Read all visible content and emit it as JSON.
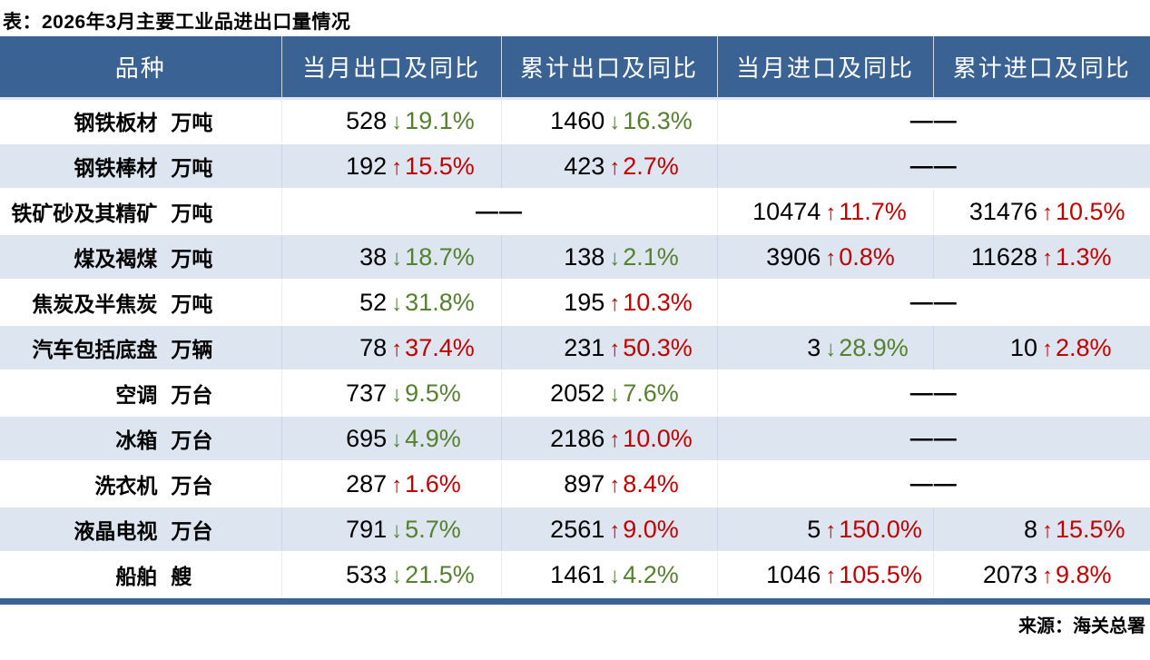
{
  "na_dash": "——",
  "arrows": {
    "up": "↑",
    "down": "↓"
  },
  "colors": {
    "header_bg": "#3A6292",
    "header_text": "#FFFFFF",
    "zebra_row": "#DCE5F0",
    "increase_red": "#C00000",
    "decrease_green": "#56802F",
    "accent_bar": "#3A6292",
    "text": "#000000"
  },
  "chart_data": {
    "type": "table",
    "title": "表：2026年3月主要工业品进出口量情况",
    "source": "来源：海关总署",
    "columns": [
      "品种",
      "当月出口及同比",
      "累计出口及同比",
      "当月进口及同比",
      "累计进口及同比"
    ],
    "yoy_note": "yoy_pct is year-over-year change in percent; negative = decline (green down arrow), positive = growth (red up arrow); null cells shown as ——",
    "rows": [
      {
        "name": "钢铁板材",
        "unit": "万吨",
        "export_month": {
          "value": 528,
          "yoy_pct": -19.1
        },
        "export_cum": {
          "value": 1460,
          "yoy_pct": -16.3
        },
        "import_month": null,
        "import_cum": null,
        "export_na": false,
        "import_na": true
      },
      {
        "name": "钢铁棒材",
        "unit": "万吨",
        "export_month": {
          "value": 192,
          "yoy_pct": 15.5
        },
        "export_cum": {
          "value": 423,
          "yoy_pct": 2.7
        },
        "import_month": null,
        "import_cum": null,
        "export_na": false,
        "import_na": true
      },
      {
        "name": "铁矿砂及其精矿",
        "unit": "万吨",
        "export_month": null,
        "export_cum": null,
        "import_month": {
          "value": 10474,
          "yoy_pct": 11.7
        },
        "import_cum": {
          "value": 31476,
          "yoy_pct": 10.5
        },
        "export_na": true,
        "import_na": false
      },
      {
        "name": "煤及褐煤",
        "unit": "万吨",
        "export_month": {
          "value": 38,
          "yoy_pct": -18.7
        },
        "export_cum": {
          "value": 138,
          "yoy_pct": -2.1
        },
        "import_month": {
          "value": 3906,
          "yoy_pct": 0.8
        },
        "import_cum": {
          "value": 11628,
          "yoy_pct": 1.3
        },
        "export_na": false,
        "import_na": false
      },
      {
        "name": "焦炭及半焦炭",
        "unit": "万吨",
        "export_month": {
          "value": 52,
          "yoy_pct": -31.8
        },
        "export_cum": {
          "value": 195,
          "yoy_pct": 10.3
        },
        "import_month": null,
        "import_cum": null,
        "export_na": false,
        "import_na": true
      },
      {
        "name": "汽车包括底盘",
        "unit": "万辆",
        "export_month": {
          "value": 78,
          "yoy_pct": 37.4
        },
        "export_cum": {
          "value": 231,
          "yoy_pct": 50.3
        },
        "import_month": {
          "value": 3,
          "yoy_pct": -28.9
        },
        "import_cum": {
          "value": 10,
          "yoy_pct": 2.8
        },
        "export_na": false,
        "import_na": false
      },
      {
        "name": "空调",
        "unit": "万台",
        "export_month": {
          "value": 737,
          "yoy_pct": -9.5
        },
        "export_cum": {
          "value": 2052,
          "yoy_pct": -7.6
        },
        "import_month": null,
        "import_cum": null,
        "export_na": false,
        "import_na": true
      },
      {
        "name": "冰箱",
        "unit": "万台",
        "export_month": {
          "value": 695,
          "yoy_pct": -4.9
        },
        "export_cum": {
          "value": 2186,
          "yoy_pct": 10.0
        },
        "import_month": null,
        "import_cum": null,
        "export_na": false,
        "import_na": true
      },
      {
        "name": "洗衣机",
        "unit": "万台",
        "export_month": {
          "value": 287,
          "yoy_pct": 1.6
        },
        "export_cum": {
          "value": 897,
          "yoy_pct": 8.4
        },
        "import_month": null,
        "import_cum": null,
        "export_na": false,
        "import_na": true
      },
      {
        "name": "液晶电视",
        "unit": "万台",
        "export_month": {
          "value": 791,
          "yoy_pct": -5.7
        },
        "export_cum": {
          "value": 2561,
          "yoy_pct": 9.0
        },
        "import_month": {
          "value": 5,
          "yoy_pct": 150.0
        },
        "import_cum": {
          "value": 8,
          "yoy_pct": 15.5
        },
        "export_na": false,
        "import_na": false
      },
      {
        "name": "船舶",
        "unit": "艘",
        "export_month": {
          "value": 533,
          "yoy_pct": -21.5
        },
        "export_cum": {
          "value": 1461,
          "yoy_pct": -4.2
        },
        "import_month": {
          "value": 1046,
          "yoy_pct": 105.5
        },
        "import_cum": {
          "value": 2073,
          "yoy_pct": 9.8
        },
        "export_na": false,
        "import_na": false
      }
    ]
  }
}
